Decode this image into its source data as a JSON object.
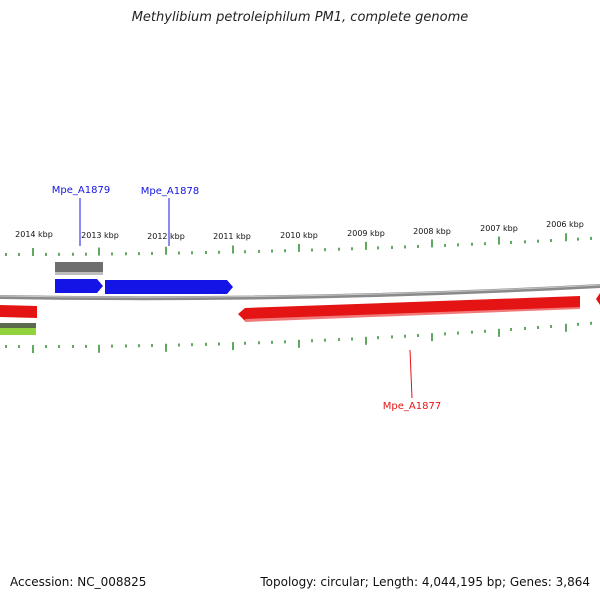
{
  "title": "Methylibium petroleiphilum PM1, complete genome",
  "footer": {
    "accession": "Accession: NC_008825",
    "summary": "Topology: circular; Length: 4,044,195 bp; Genes: 3,864"
  },
  "ruler": {
    "unit": "kbp",
    "labels": [
      "2014 kbp",
      "2013 kbp",
      "2012 kbp",
      "2011 kbp",
      "2010 kbp",
      "2009 kbp",
      "2008 kbp",
      "2007 kbp",
      "2006 kbp"
    ]
  },
  "genes": [
    {
      "name": "Mpe_A1879",
      "strand": "+",
      "color": "#1010e0"
    },
    {
      "name": "Mpe_A1878",
      "strand": "+",
      "color": "#1010e0"
    },
    {
      "name": "Mpe_A1877",
      "strand": "-",
      "color": "#e01010"
    }
  ],
  "colors": {
    "forward_gene": "#1010e0",
    "reverse_gene": "#e01010",
    "tick": "#2a8a2a",
    "backbone": "#888888",
    "rna_feature": "#707070",
    "other_feature": "#8fcf3a"
  }
}
